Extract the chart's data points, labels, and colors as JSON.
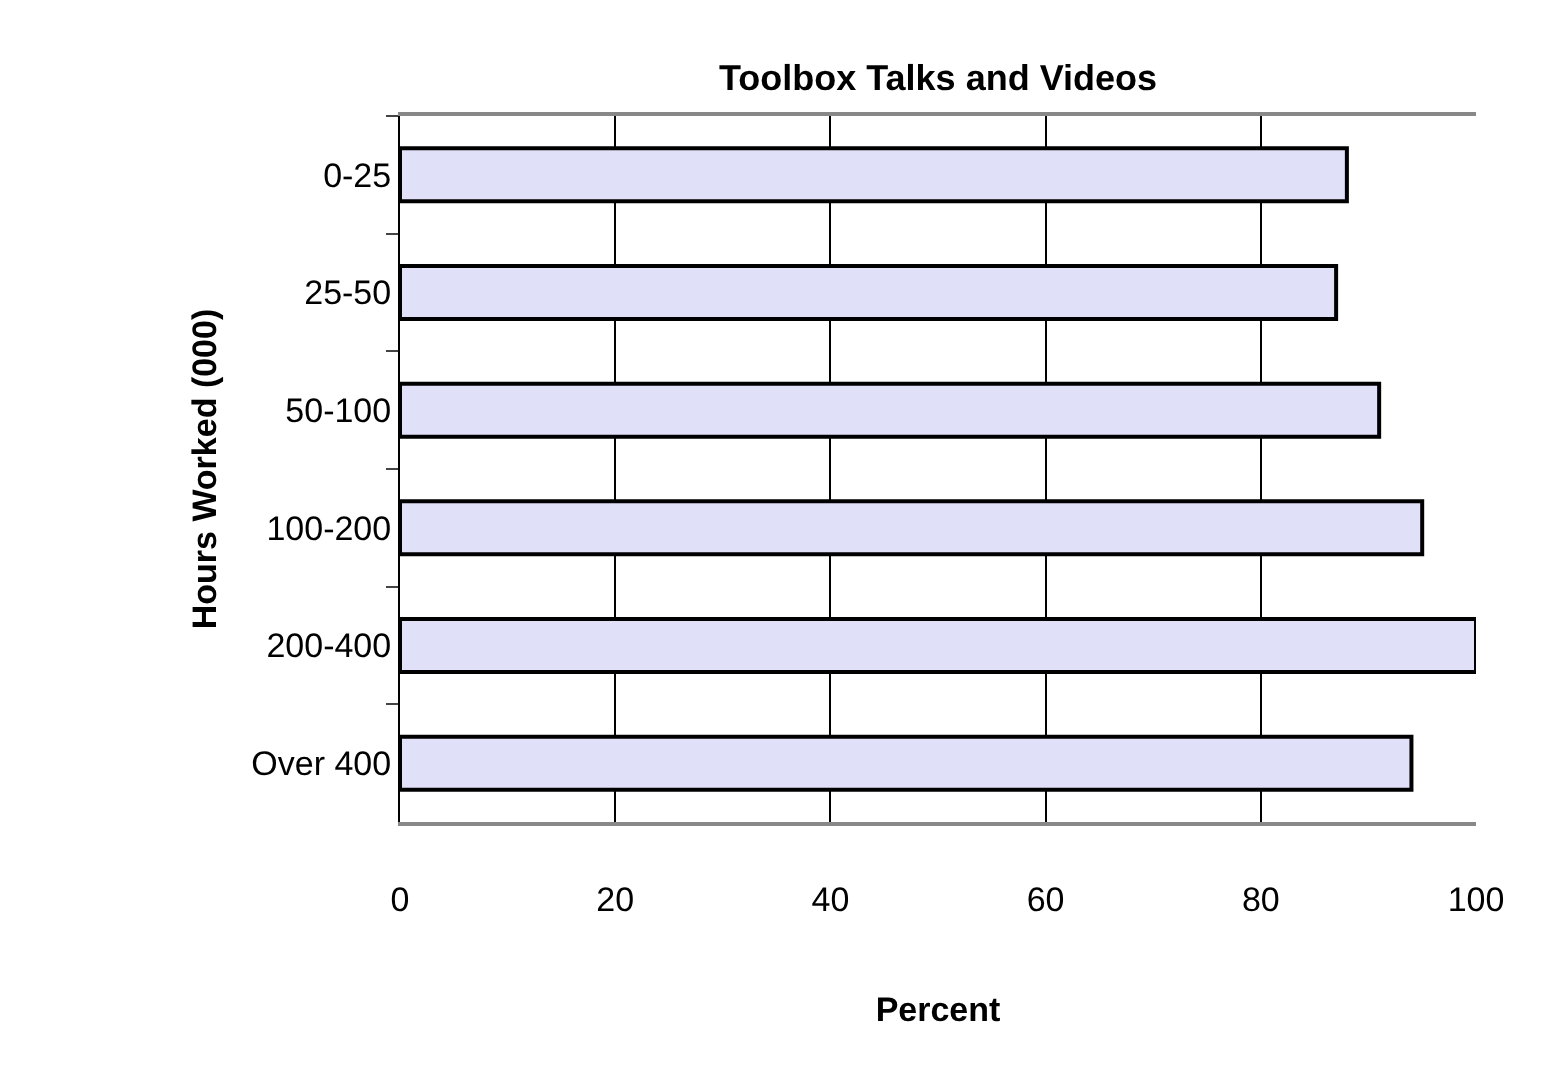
{
  "chart_data": {
    "type": "bar",
    "orientation": "horizontal",
    "title": "Toolbox Talks and Videos",
    "xlabel": "Percent",
    "ylabel": "Hours Worked (000)",
    "categories": [
      "0-25",
      "25-50",
      "50-100",
      "100-200",
      "200-400",
      "Over 400"
    ],
    "values": [
      88,
      87,
      91,
      95,
      100,
      94
    ],
    "color": "#e0e0f8",
    "xlim": [
      0,
      100
    ],
    "xticks": [
      0,
      20,
      40,
      60,
      80,
      100
    ],
    "grid": "x",
    "legend": false
  }
}
